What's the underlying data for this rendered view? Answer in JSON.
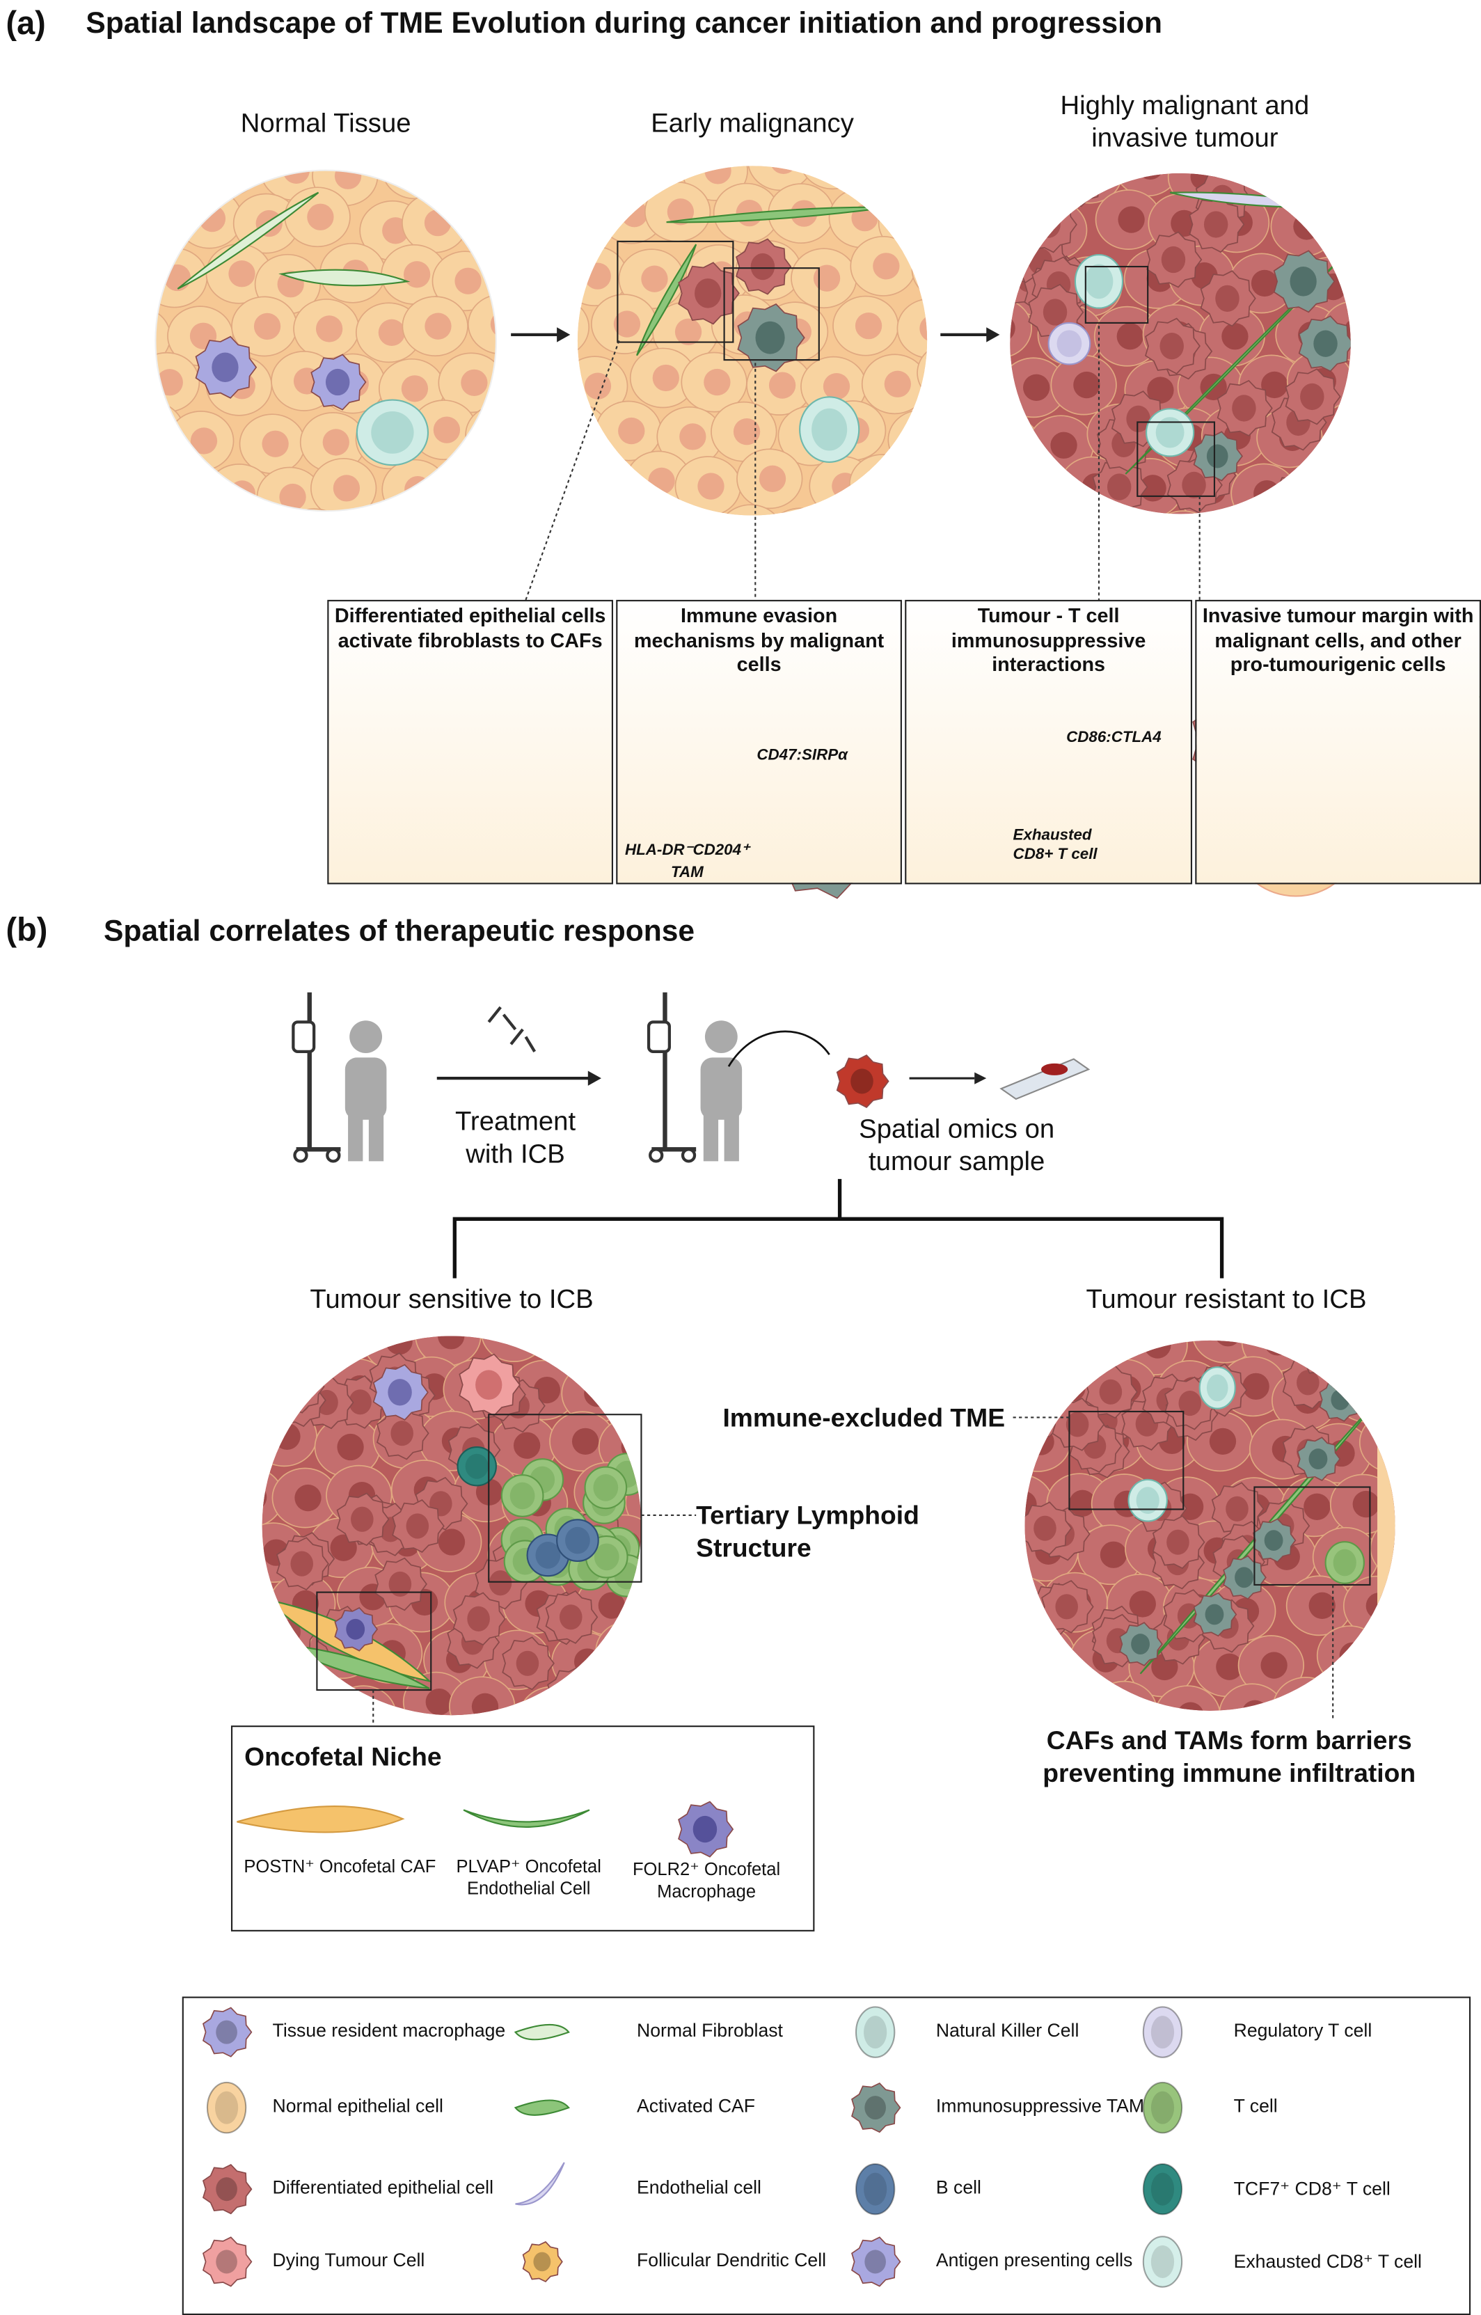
{
  "panel_a": {
    "tag": "(a)",
    "title": "Spatial landscape of TME Evolution during cancer initiation and progression",
    "stages": [
      "Normal Tissue",
      "Early malignancy",
      "Highly malignant and invasive tumour"
    ],
    "insets": [
      {
        "title": "Differentiated epithelial cells activate fibroblasts to CAFs"
      },
      {
        "title": "Immune evasion mechanisms by  malignant cells",
        "annotations": [
          "CD47:SIRPα",
          "HLA-DR⁻CD204⁺",
          "TAM"
        ]
      },
      {
        "title": "Tumour - T cell immunosuppressive interactions",
        "annotations": [
          "CD86:CTLA4",
          "Exhausted",
          "CD8+ T cell"
        ]
      },
      {
        "title": "Invasive tumour margin with malignant cells, and other pro-tumourigenic cells"
      }
    ]
  },
  "panel_b": {
    "tag": "(b)",
    "title": "Spatial correlates of therapeutic response",
    "treatment": [
      "Treatment",
      "with ICB"
    ],
    "spatial": [
      "Spatial omics on",
      "tumour sample"
    ],
    "sensitive": "Tumour sensitive to ICB",
    "resistant": "Tumour resistant to ICB",
    "immune_excluded": "Immune-excluded TME",
    "tls": [
      "Tertiary Lymphoid",
      "Structure"
    ],
    "cafs_tams": [
      "CAFs and TAMs form barriers",
      "preventing immune infiltration"
    ],
    "oncofetal": {
      "title": "Oncofetal Niche",
      "items": [
        {
          "label": [
            "POSTN⁺ Oncofetal CAF"
          ],
          "color": "#f5c26b"
        },
        {
          "label": [
            "PLVAP⁺ Oncofetal",
            "Endothelial Cell"
          ],
          "color": "#8cc57a"
        },
        {
          "label": [
            "FOLR2⁺ Oncofetal",
            "Macrophage"
          ],
          "color": "#8a85c6"
        }
      ]
    }
  },
  "legend": [
    {
      "label": "Tissue resident macrophage",
      "icon": "macrophage",
      "color": "#a9a8e0"
    },
    {
      "label": "Normal Fibroblast",
      "icon": "fibroblast",
      "color": "#dff0d6"
    },
    {
      "label": "Natural Killer Cell",
      "icon": "round",
      "color": "#cfece6"
    },
    {
      "label": "Regulatory T cell",
      "icon": "round",
      "color": "#dcd9f0"
    },
    {
      "label": "Normal epithelial cell",
      "icon": "round",
      "color": "#f8d3a0"
    },
    {
      "label": "Activated CAF",
      "icon": "caf",
      "color": "#8cc57a"
    },
    {
      "label": "Immunosuppressive TAM",
      "icon": "spiky",
      "color": "#7f9993"
    },
    {
      "label": "T cell",
      "icon": "round",
      "color": "#98c47c"
    },
    {
      "label": "Differentiated epithelial cell",
      "icon": "spiky",
      "color": "#c46e6e"
    },
    {
      "label": "Endothelial cell",
      "icon": "endothelial",
      "color": "#d8d6f0"
    },
    {
      "label": "B cell",
      "icon": "round",
      "color": "#5d7fa8"
    },
    {
      "label": "TCF7⁺ CD8⁺ T cell",
      "icon": "round",
      "color": "#2f8a80"
    },
    {
      "label": "Dying Tumour Cell",
      "icon": "dying",
      "color": "#f0a0a0"
    },
    {
      "label": "Follicular Dendritic Cell",
      "icon": "fdc",
      "color": "#f5c26b"
    },
    {
      "label": "Antigen presenting cells",
      "icon": "apc",
      "color": "#a9a8e0"
    },
    {
      "label": "Exhausted CD8⁺ T cell",
      "icon": "round",
      "color": "#d5efea"
    }
  ]
}
